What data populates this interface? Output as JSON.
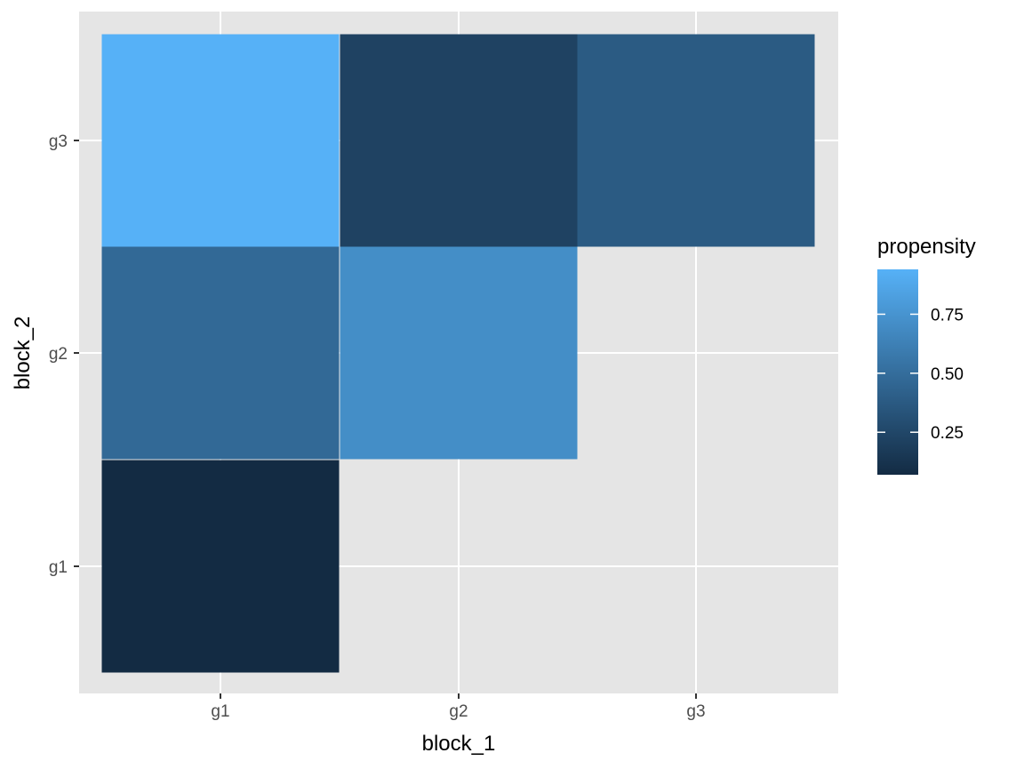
{
  "chart_data": {
    "type": "heatmap",
    "x_categories": [
      "g1",
      "g2",
      "g3"
    ],
    "y_categories": [
      "g1",
      "g2",
      "g3"
    ],
    "xlabel": "block_1",
    "ylabel": "block_2",
    "cells": [
      {
        "x": "g1",
        "y": "g1",
        "value": 0.07
      },
      {
        "x": "g1",
        "y": "g2",
        "value": 0.47
      },
      {
        "x": "g1",
        "y": "g3",
        "value": 0.94
      },
      {
        "x": "g2",
        "y": "g2",
        "value": 0.71
      },
      {
        "x": "g2",
        "y": "g3",
        "value": 0.22
      },
      {
        "x": "g3",
        "y": "g3",
        "value": 0.38
      }
    ],
    "legend": {
      "title": "propensity",
      "ticks": [
        0.25,
        0.5,
        0.75
      ],
      "tick_labels": [
        "0.25",
        "0.50",
        "0.75"
      ],
      "range": [
        0.07,
        0.94
      ],
      "low_color": "#132B43",
      "high_color": "#56B1F7",
      "placement": "right"
    },
    "panel_background": "#E5E5E5",
    "grid": true
  }
}
